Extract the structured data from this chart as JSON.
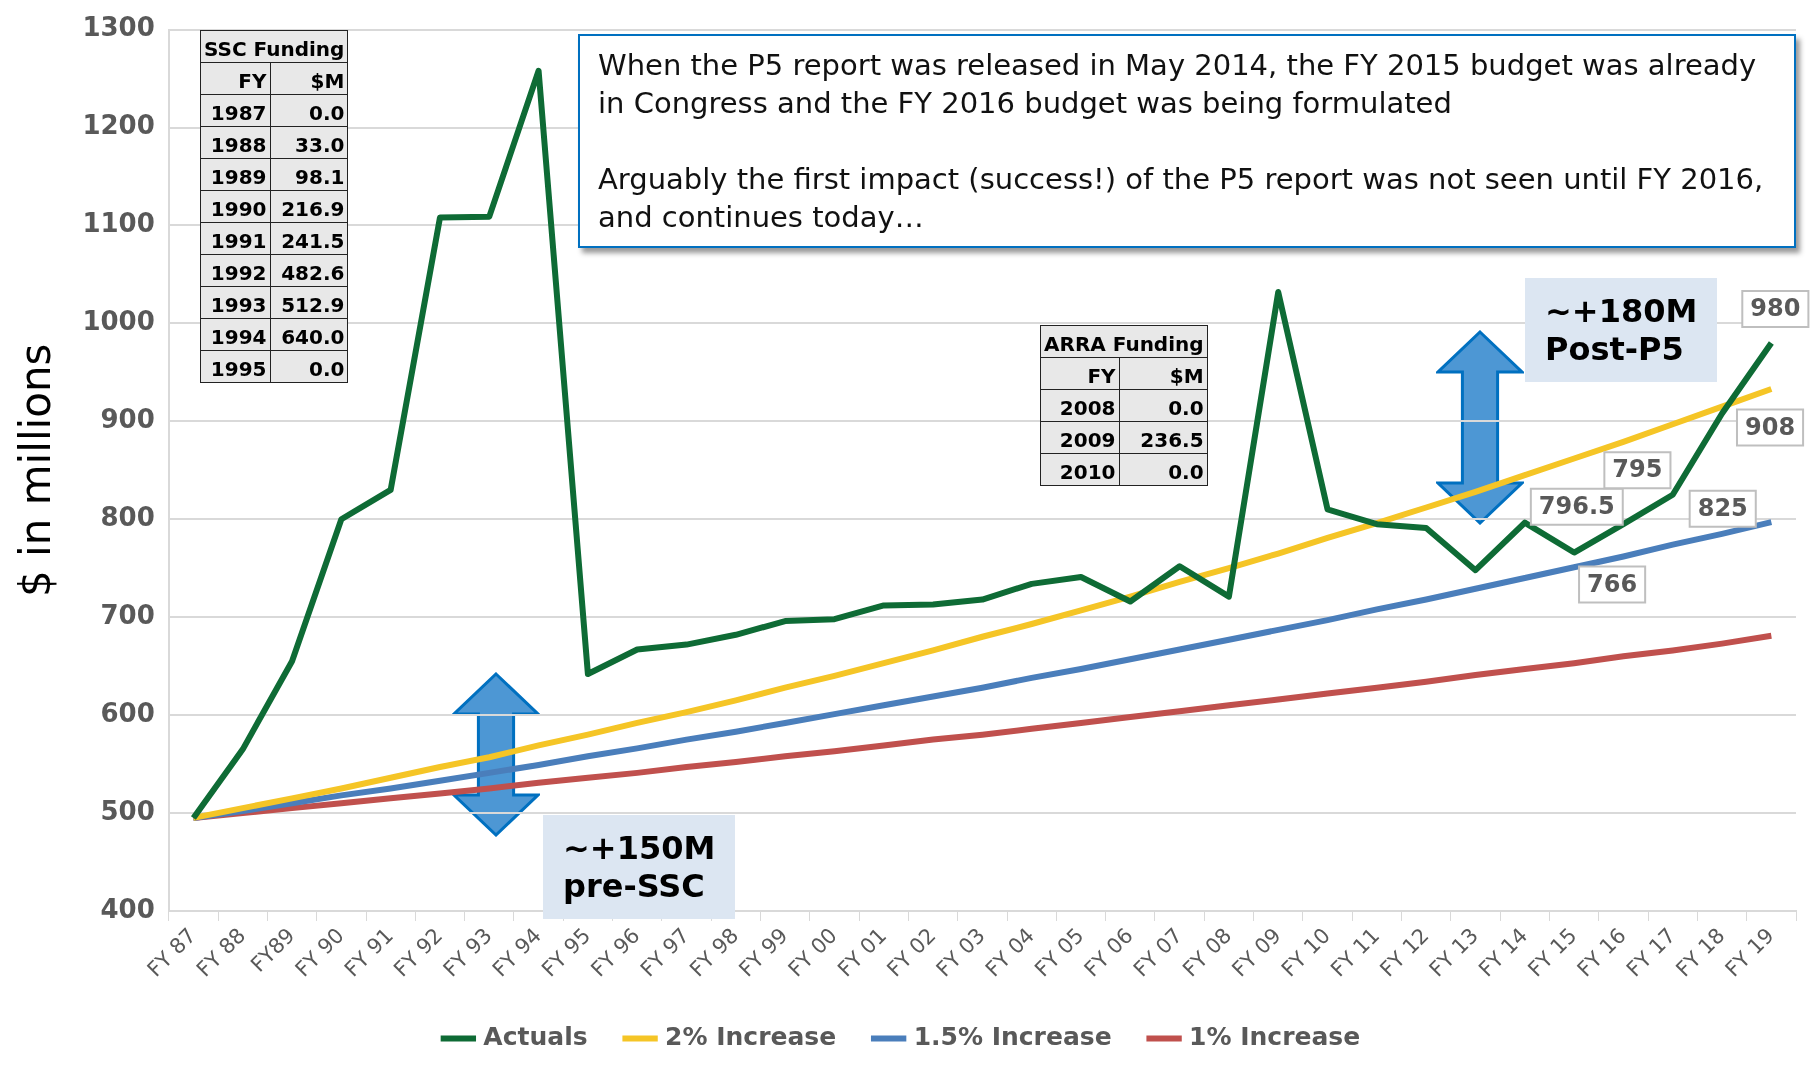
{
  "chart_data": {
    "type": "line",
    "ylabel": "$ in millions",
    "categories": [
      "FY 87",
      "FY 88",
      "FY89",
      "FY 90",
      "FY 91",
      "FY 92",
      "FY 93",
      "FY 94",
      "FY 95",
      "FY 96",
      "FY 97",
      "FY 98",
      "FY 99",
      "FY 00",
      "FY 01",
      "FY 02",
      "FY 03",
      "FY 04",
      "FY 05",
      "FY 06",
      "FY 07",
      "FY 08",
      "FY 09",
      "FY 10",
      "FY 11",
      "FY 12",
      "FY 13",
      "FY 14",
      "FY 15",
      "FY 16",
      "FY 17",
      "FY 18",
      "FY 19"
    ],
    "series": [
      {
        "name": "Actuals",
        "color": "#0e6b35",
        "values": [
          495,
          565,
          655,
          800,
          830,
          1108,
          1109,
          1258,
          642,
          667,
          672,
          682,
          696,
          698,
          712,
          713,
          718,
          734,
          741,
          716,
          752,
          721,
          1032,
          810,
          795,
          791,
          748,
          796.5,
          766,
          795,
          825,
          908,
          980
        ],
        "value_labels": [
          null,
          null,
          null,
          null,
          null,
          null,
          null,
          null,
          null,
          null,
          null,
          null,
          null,
          null,
          null,
          null,
          null,
          null,
          null,
          null,
          null,
          null,
          null,
          null,
          null,
          null,
          null,
          "796.5",
          "766",
          "795",
          "825",
          "908",
          "980"
        ]
      },
      {
        "name": "2% Increase",
        "color": "#f5c526",
        "values": [
          495,
          505,
          515,
          525,
          536,
          547,
          557,
          569,
          580,
          592,
          603,
          615,
          628,
          640,
          653,
          666,
          680,
          693,
          707,
          721,
          736,
          750,
          765,
          781,
          796,
          812,
          828,
          845,
          862,
          879,
          897,
          915,
          933
        ]
      },
      {
        "name": "1.5% Increase",
        "color": "#4a7ebb",
        "values": [
          495,
          502,
          510,
          518,
          525,
          533,
          541,
          549,
          558,
          566,
          575,
          583,
          592,
          601,
          610,
          619,
          628,
          638,
          647,
          657,
          667,
          677,
          687,
          697,
          708,
          718,
          729,
          740,
          751,
          762,
          774,
          785,
          797
        ]
      },
      {
        "name": "1% Increase",
        "color": "#c0504d",
        "values": [
          495,
          500,
          505,
          510,
          515,
          520,
          525,
          531,
          536,
          541,
          547,
          552,
          558,
          563,
          569,
          575,
          580,
          586,
          592,
          598,
          604,
          610,
          616,
          622,
          628,
          634,
          641,
          647,
          653,
          660,
          666,
          673,
          681
        ]
      }
    ],
    "ylim": [
      400,
      1300
    ],
    "yticks": [
      400,
      500,
      600,
      700,
      800,
      900,
      1000,
      1100,
      1200,
      1300
    ],
    "grid": "y",
    "legend": "bottom",
    "marker": "none",
    "line_style": "solid",
    "annotations": [
      "When the P5 report was released in May 2014, the FY 2015 budget was already in Congress and the FY 2016 budget was being formulated\n\nArguably the first impact (success!) of the P5 report was not seen until FY 2016, and continues today…",
      "SSC Funding\nFY\t$M\n1987\t0.0\n1988\t33.0\n1989\t98.1\n1990\t216.9\n1991\t241.5\n1992\t482.6\n1993\t512.9\n1994\t640.0\n1995\t0.0",
      "ARRA Funding\nFY\t$M\n2008\t0.0\n2009\t236.5\n2010\t0.0",
      "~+180M\nPost-P5",
      "~+150M\npre-SSC"
    ]
  }
}
